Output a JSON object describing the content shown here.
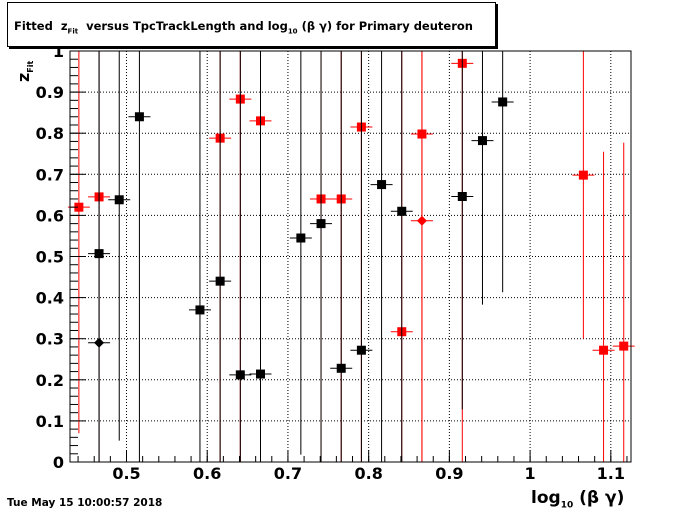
{
  "header": {
    "title_prefix": "Fitted",
    "title_var": "z",
    "title_var_sub": "Fit",
    "title_middle": "versus TpcTrackLength and log",
    "title_log_sub": "10",
    "title_suffix": "(β γ) for Primary deuteron"
  },
  "footer": {
    "timestamp": "Tue May 15 10:00:57 2018"
  },
  "axes": {
    "x_title_main": "log",
    "x_title_sub": "10",
    "x_title_rest": "(β γ)",
    "y_title_main": "z",
    "y_title_sub": "Fit"
  },
  "chart_data": {
    "type": "scatter",
    "grid": true,
    "xlim": [
      0.43,
      1.125
    ],
    "ylim": [
      0,
      1.0
    ],
    "x_ticks": [
      {
        "v": 0.5,
        "label": "0.5"
      },
      {
        "v": 0.6,
        "label": "0.6"
      },
      {
        "v": 0.7,
        "label": "0.7"
      },
      {
        "v": 0.8,
        "label": "0.8"
      },
      {
        "v": 0.9,
        "label": "0.9"
      },
      {
        "v": 1.0,
        "label": "1"
      },
      {
        "v": 1.1,
        "label": "1.1"
      }
    ],
    "y_ticks": [
      {
        "v": 0,
        "label": "0"
      },
      {
        "v": 0.1,
        "label": "0.1"
      },
      {
        "v": 0.2,
        "label": "0.2"
      },
      {
        "v": 0.3,
        "label": "0.3"
      },
      {
        "v": 0.4,
        "label": "0.4"
      },
      {
        "v": 0.5,
        "label": "0.5"
      },
      {
        "v": 0.6,
        "label": "0.6"
      },
      {
        "v": 0.7,
        "label": "0.7"
      },
      {
        "v": 0.8,
        "label": "0.8"
      },
      {
        "v": 0.9,
        "label": "0.9"
      },
      {
        "v": 1.0,
        "label": "1"
      }
    ],
    "series": [
      {
        "color": "#ff0000",
        "points": [
          {
            "x": 0.441,
            "y": 0.62,
            "ylo": 0.07,
            "yhi": 1.0,
            "marker": "square"
          },
          {
            "x": 0.466,
            "y": 0.645,
            "ylo": 0.0,
            "yhi": 1.0,
            "marker": "square"
          },
          {
            "x": 0.616,
            "y": 0.788,
            "ylo": 0.0,
            "yhi": 1.0,
            "marker": "square"
          },
          {
            "x": 0.641,
            "y": 0.883,
            "ylo": 0.0,
            "yhi": 1.0,
            "marker": "square"
          },
          {
            "x": 0.666,
            "y": 0.83,
            "ylo": 0.0,
            "yhi": 1.0,
            "marker": "square"
          },
          {
            "x": 0.741,
            "y": 0.64,
            "ylo": 0.0,
            "yhi": 1.0,
            "marker": "square"
          },
          {
            "x": 0.766,
            "y": 0.64,
            "ylo": 0.0,
            "yhi": 1.0,
            "marker": "square"
          },
          {
            "x": 0.791,
            "y": 0.815,
            "ylo": 0.0,
            "yhi": 1.0,
            "marker": "square"
          },
          {
            "x": 0.841,
            "y": 0.317,
            "ylo": 0.0,
            "yhi": 1.0,
            "marker": "square"
          },
          {
            "x": 0.866,
            "y": 0.798,
            "ylo": 0.0,
            "yhi": 1.0,
            "marker": "square"
          },
          {
            "x": 0.866,
            "y": 0.587,
            "ylo": 0.0,
            "yhi": 1.0,
            "marker": "diamond"
          },
          {
            "x": 0.916,
            "y": 0.97,
            "ylo": 0.0,
            "yhi": 1.0,
            "marker": "square"
          },
          {
            "x": 1.066,
            "y": 0.698,
            "ylo": 0.3,
            "yhi": 1.0,
            "marker": "square"
          },
          {
            "x": 1.091,
            "y": 0.272,
            "ylo": 0.0,
            "yhi": 0.755,
            "marker": "square"
          },
          {
            "x": 1.116,
            "y": 0.282,
            "ylo": 0.0,
            "yhi": 0.777,
            "marker": "square"
          }
        ]
      },
      {
        "color": "#000000",
        "points": [
          {
            "x": 0.466,
            "y": 0.507,
            "ylo": 0.0,
            "yhi": 1.0,
            "marker": "square"
          },
          {
            "x": 0.466,
            "y": 0.29,
            "ylo": 0.0,
            "yhi": 1.0,
            "marker": "diamond"
          },
          {
            "x": 0.491,
            "y": 0.638,
            "ylo": 0.052,
            "yhi": 1.0,
            "marker": "square"
          },
          {
            "x": 0.516,
            "y": 0.84,
            "ylo": 0.0,
            "yhi": 1.0,
            "marker": "square"
          },
          {
            "x": 0.591,
            "y": 0.37,
            "ylo": 0.0,
            "yhi": 1.0,
            "marker": "square"
          },
          {
            "x": 0.616,
            "y": 0.44,
            "ylo": 0.0,
            "yhi": 1.0,
            "marker": "square"
          },
          {
            "x": 0.641,
            "y": 0.212,
            "ylo": 0.0,
            "yhi": 1.0,
            "marker": "square"
          },
          {
            "x": 0.666,
            "y": 0.214,
            "ylo": 0.0,
            "yhi": 1.0,
            "marker": "square"
          },
          {
            "x": 0.716,
            "y": 0.545,
            "ylo": 0.018,
            "yhi": 1.0,
            "marker": "square"
          },
          {
            "x": 0.741,
            "y": 0.58,
            "ylo": 0.0,
            "yhi": 1.0,
            "marker": "square"
          },
          {
            "x": 0.766,
            "y": 0.228,
            "ylo": 0.0,
            "yhi": 1.0,
            "marker": "square"
          },
          {
            "x": 0.791,
            "y": 0.272,
            "ylo": 0.0,
            "yhi": 1.0,
            "marker": "square"
          },
          {
            "x": 0.816,
            "y": 0.675,
            "ylo": 0.0,
            "yhi": 1.0,
            "marker": "square"
          },
          {
            "x": 0.841,
            "y": 0.61,
            "ylo": 0.0,
            "yhi": 1.0,
            "marker": "square"
          },
          {
            "x": 0.916,
            "y": 0.646,
            "ylo": 0.128,
            "yhi": 1.0,
            "marker": "square"
          },
          {
            "x": 0.941,
            "y": 0.782,
            "ylo": 0.383,
            "yhi": 1.0,
            "marker": "square"
          },
          {
            "x": 0.966,
            "y": 0.876,
            "ylo": 0.413,
            "yhi": 1.0,
            "marker": "square"
          }
        ]
      }
    ]
  }
}
